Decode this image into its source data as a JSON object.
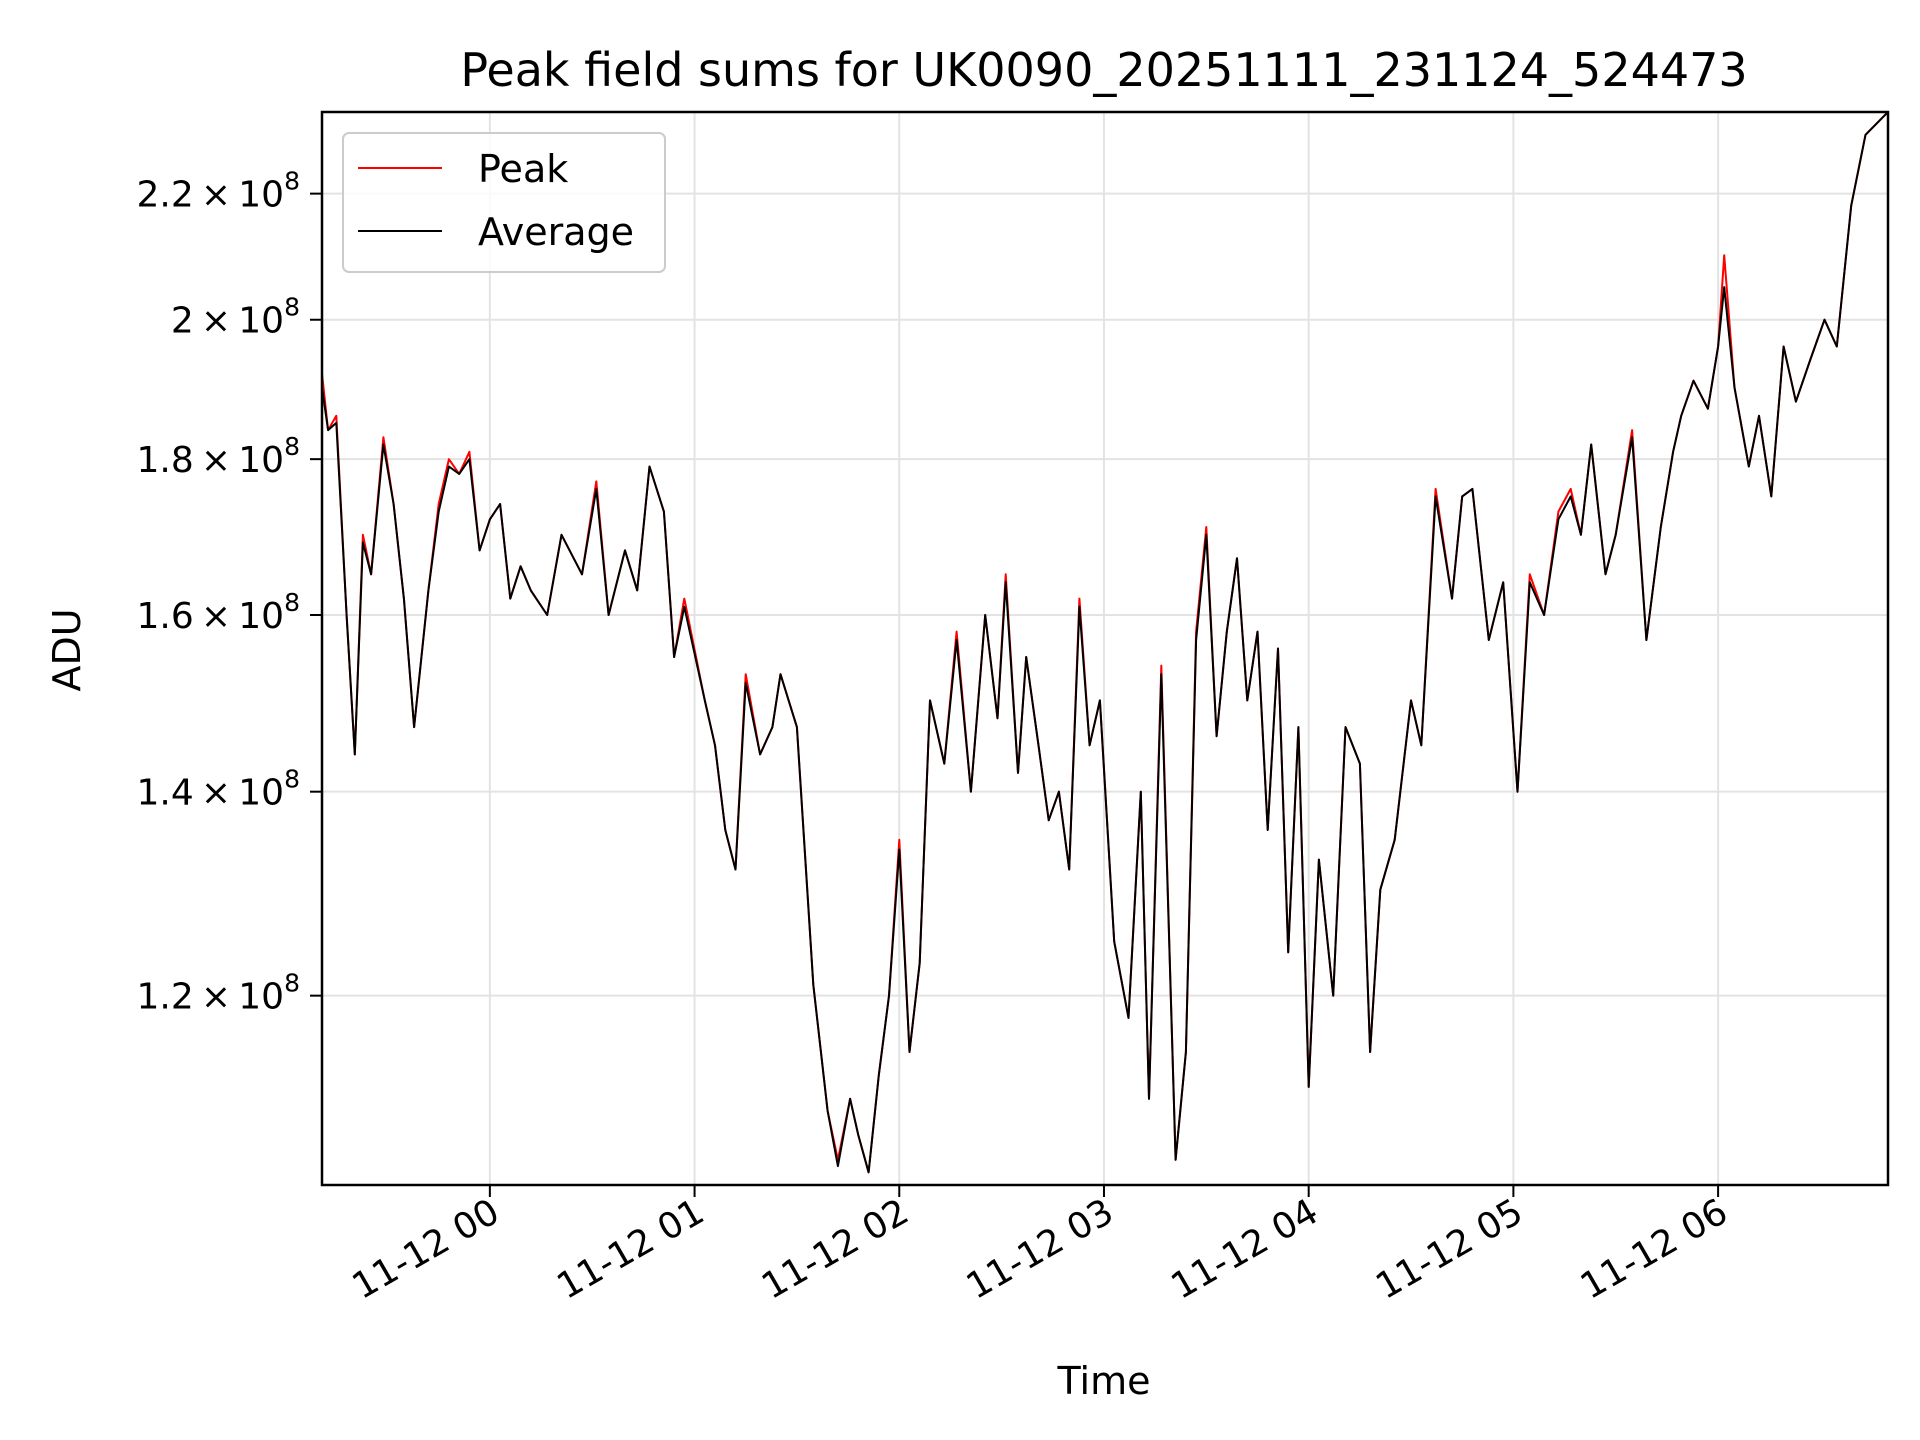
{
  "chart_data": {
    "type": "line",
    "title": "Peak field sums for UK0090_20251111_231124_524473",
    "xlabel": "Time",
    "ylabel": "ADU",
    "yscale": "log",
    "ylim": [
      104000000.0,
      234000000.0
    ],
    "xlim_hours": [
      -0.82,
      6.83
    ],
    "grid": true,
    "legend_position": "upper-left",
    "x_ticks": [
      {
        "hour": 0,
        "label": "11-12 00"
      },
      {
        "hour": 1,
        "label": "11-12 01"
      },
      {
        "hour": 2,
        "label": "11-12 02"
      },
      {
        "hour": 3,
        "label": "11-12 03"
      },
      {
        "hour": 4,
        "label": "11-12 04"
      },
      {
        "hour": 5,
        "label": "11-12 05"
      },
      {
        "hour": 6,
        "label": "11-12 06"
      }
    ],
    "y_ticks": [
      {
        "value": 120000000.0,
        "mant": "1.2",
        "exp": "8"
      },
      {
        "value": 140000000.0,
        "mant": "1.4",
        "exp": "8"
      },
      {
        "value": 160000000.0,
        "mant": "1.6",
        "exp": "8"
      },
      {
        "value": 180000000.0,
        "mant": "1.8",
        "exp": "8"
      },
      {
        "value": 200000000.0,
        "mant": "2",
        "exp": "8"
      },
      {
        "value": 220000000.0,
        "mant": "2.2",
        "exp": "8"
      }
    ],
    "series": [
      {
        "name": "Peak",
        "color": "#ff0000",
        "x_hours": [
          -0.82,
          -0.79,
          -0.75,
          -0.7,
          -0.66,
          -0.62,
          -0.58,
          -0.52,
          -0.47,
          -0.42,
          -0.37,
          -0.3,
          -0.25,
          -0.2,
          -0.15,
          -0.1,
          -0.05,
          0.0,
          0.05,
          0.1,
          0.15,
          0.2,
          0.28,
          0.35,
          0.45,
          0.52,
          0.58,
          0.66,
          0.72,
          0.78,
          0.85,
          0.9,
          0.95,
          1.05,
          1.1,
          1.15,
          1.2,
          1.25,
          1.32,
          1.38,
          1.42,
          1.5,
          1.58,
          1.65,
          1.7,
          1.76,
          1.8,
          1.85,
          1.9,
          1.95,
          2.0,
          2.05,
          2.1,
          2.15,
          2.22,
          2.28,
          2.35,
          2.42,
          2.48,
          2.52,
          2.58,
          2.62,
          2.68,
          2.73,
          2.78,
          2.83,
          2.88,
          2.93,
          2.98,
          3.05,
          3.12,
          3.18,
          3.22,
          3.28,
          3.35,
          3.4,
          3.45,
          3.5,
          3.55,
          3.6,
          3.65,
          3.7,
          3.75,
          3.8,
          3.85,
          3.9,
          3.95,
          4.0,
          4.05,
          4.12,
          4.18,
          4.25,
          4.3,
          4.35,
          4.42,
          4.5,
          4.55,
          4.62,
          4.7,
          4.75,
          4.8,
          4.88,
          4.95,
          5.02,
          5.08,
          5.15,
          5.22,
          5.28,
          5.33,
          5.38,
          5.45,
          5.5,
          5.58,
          5.65,
          5.72,
          5.78,
          5.82,
          5.88,
          5.95,
          6.0,
          6.03,
          6.08,
          6.15,
          6.2,
          6.26,
          6.32,
          6.38,
          6.45,
          6.52,
          6.58,
          6.65,
          6.72,
          6.83
        ],
        "values": [
          192000000.0,
          184000000.0,
          186000000.0,
          160000000.0,
          144000000.0,
          170000000.0,
          165000000.0,
          183000000.0,
          174000000.0,
          162000000.0,
          147000000.0,
          163000000.0,
          174000000.0,
          180000000.0,
          178000000.0,
          181000000.0,
          168000000.0,
          172000000.0,
          174000000.0,
          162000000.0,
          166000000.0,
          163000000.0,
          160000000.0,
          170000000.0,
          165000000.0,
          177000000.0,
          160000000.0,
          168000000.0,
          163000000.0,
          179000000.0,
          173000000.0,
          155000000.0,
          162000000.0,
          150000000.0,
          145000000.0,
          136000000.0,
          132000000.0,
          153000000.0,
          144000000.0,
          147000000.0,
          153000000.0,
          147000000.0,
          121000000.0,
          110000000.0,
          106000000.0,
          111000000.0,
          108000000.0,
          105000000.0,
          113000000.0,
          120000000.0,
          135000000.0,
          115000000.0,
          123000000.0,
          150000000.0,
          143000000.0,
          158000000.0,
          140000000.0,
          160000000.0,
          148000000.0,
          165000000.0,
          142000000.0,
          155000000.0,
          145000000.0,
          137000000.0,
          140000000.0,
          132000000.0,
          162000000.0,
          145000000.0,
          150000000.0,
          125000000.0,
          118000000.0,
          140000000.0,
          111000000.0,
          154000000.0,
          106000000.0,
          115000000.0,
          158000000.0,
          171000000.0,
          146000000.0,
          158000000.0,
          167000000.0,
          150000000.0,
          158000000.0,
          136000000.0,
          156000000.0,
          124000000.0,
          147000000.0,
          112000000.0,
          133000000.0,
          120000000.0,
          147000000.0,
          143000000.0,
          115000000.0,
          130000000.0,
          135000000.0,
          150000000.0,
          145000000.0,
          176000000.0,
          162000000.0,
          175000000.0,
          176000000.0,
          157000000.0,
          164000000.0,
          140000000.0,
          165000000.0,
          160000000.0,
          173000000.0,
          176000000.0,
          170000000.0,
          182000000.0,
          165000000.0,
          170000000.0,
          184000000.0,
          157000000.0,
          171000000.0,
          181000000.0,
          186000000.0,
          191000000.0,
          187000000.0,
          196000000.0,
          210000000.0,
          190000000.0,
          179000000.0,
          186000000.0,
          175000000.0,
          196000000.0,
          188000000.0,
          194000000.0,
          200000000.0,
          196000000.0,
          218000000.0,
          230000000.0,
          234000000.0
        ]
      },
      {
        "name": "Average",
        "color": "#000000",
        "x_hours": [
          -0.82,
          -0.79,
          -0.75,
          -0.7,
          -0.66,
          -0.62,
          -0.58,
          -0.52,
          -0.47,
          -0.42,
          -0.37,
          -0.3,
          -0.25,
          -0.2,
          -0.15,
          -0.1,
          -0.05,
          0.0,
          0.05,
          0.1,
          0.15,
          0.2,
          0.28,
          0.35,
          0.45,
          0.52,
          0.58,
          0.66,
          0.72,
          0.78,
          0.85,
          0.9,
          0.95,
          1.05,
          1.1,
          1.15,
          1.2,
          1.25,
          1.32,
          1.38,
          1.42,
          1.5,
          1.58,
          1.65,
          1.7,
          1.76,
          1.8,
          1.85,
          1.9,
          1.95,
          2.0,
          2.05,
          2.1,
          2.15,
          2.22,
          2.28,
          2.35,
          2.42,
          2.48,
          2.52,
          2.58,
          2.62,
          2.68,
          2.73,
          2.78,
          2.83,
          2.88,
          2.93,
          2.98,
          3.05,
          3.12,
          3.18,
          3.22,
          3.28,
          3.35,
          3.4,
          3.45,
          3.5,
          3.55,
          3.6,
          3.65,
          3.7,
          3.75,
          3.8,
          3.85,
          3.9,
          3.95,
          4.0,
          4.05,
          4.12,
          4.18,
          4.25,
          4.3,
          4.35,
          4.42,
          4.5,
          4.55,
          4.62,
          4.7,
          4.75,
          4.8,
          4.88,
          4.95,
          5.02,
          5.08,
          5.15,
          5.22,
          5.28,
          5.33,
          5.38,
          5.45,
          5.5,
          5.58,
          5.65,
          5.72,
          5.78,
          5.82,
          5.88,
          5.95,
          6.0,
          6.03,
          6.08,
          6.15,
          6.2,
          6.26,
          6.32,
          6.38,
          6.45,
          6.52,
          6.58,
          6.65,
          6.72,
          6.83
        ],
        "values": [
          190000000.0,
          184000000.0,
          185000000.0,
          160000000.0,
          144000000.0,
          169000000.0,
          165000000.0,
          182000000.0,
          174000000.0,
          162000000.0,
          147000000.0,
          163000000.0,
          173000000.0,
          179000000.0,
          178000000.0,
          180000000.0,
          168000000.0,
          172000000.0,
          174000000.0,
          162000000.0,
          166000000.0,
          163000000.0,
          160000000.0,
          170000000.0,
          165000000.0,
          176000000.0,
          160000000.0,
          168000000.0,
          163000000.0,
          179000000.0,
          173000000.0,
          155000000.0,
          161000000.0,
          150000000.0,
          145000000.0,
          136000000.0,
          132000000.0,
          152000000.0,
          144000000.0,
          147000000.0,
          153000000.0,
          147000000.0,
          121000000.0,
          110000000.0,
          105500000.0,
          111000000.0,
          108000000.0,
          105000000.0,
          113000000.0,
          120000000.0,
          134000000.0,
          115000000.0,
          123000000.0,
          150000000.0,
          143000000.0,
          157000000.0,
          140000000.0,
          160000000.0,
          148000000.0,
          164000000.0,
          142000000.0,
          155000000.0,
          145000000.0,
          137000000.0,
          140000000.0,
          132000000.0,
          161000000.0,
          145000000.0,
          150000000.0,
          125000000.0,
          118000000.0,
          140000000.0,
          111000000.0,
          153000000.0,
          106000000.0,
          115000000.0,
          157000000.0,
          170000000.0,
          146000000.0,
          158000000.0,
          167000000.0,
          150000000.0,
          158000000.0,
          136000000.0,
          156000000.0,
          124000000.0,
          147000000.0,
          112000000.0,
          133000000.0,
          120000000.0,
          147000000.0,
          143000000.0,
          115000000.0,
          130000000.0,
          135000000.0,
          150000000.0,
          145000000.0,
          175000000.0,
          162000000.0,
          175000000.0,
          176000000.0,
          157000000.0,
          164000000.0,
          140000000.0,
          164000000.0,
          160000000.0,
          172000000.0,
          175000000.0,
          170000000.0,
          182000000.0,
          165000000.0,
          170000000.0,
          183000000.0,
          157000000.0,
          171000000.0,
          181000000.0,
          186000000.0,
          191000000.0,
          187000000.0,
          196000000.0,
          205000000.0,
          190000000.0,
          179000000.0,
          186000000.0,
          175000000.0,
          196000000.0,
          188000000.0,
          194000000.0,
          200000000.0,
          196000000.0,
          218000000.0,
          230000000.0,
          234000000.0
        ]
      }
    ]
  }
}
